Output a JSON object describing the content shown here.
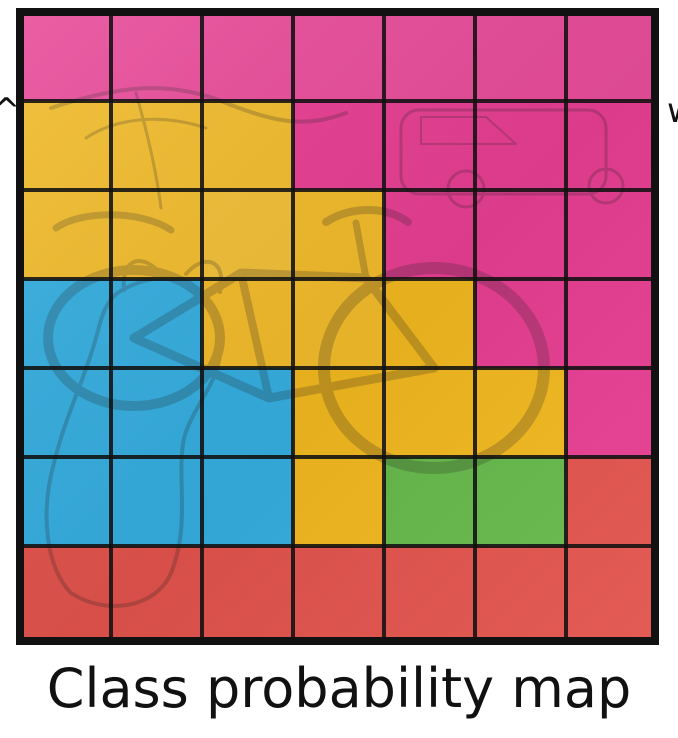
{
  "caption": "Class probability map",
  "edge_marks": {
    "left": "^",
    "right": "w"
  },
  "colors": {
    "pink": "#e83e93",
    "gold": "#f2b81f",
    "blue": "#35aee0",
    "green": "#66b94b",
    "red": "#e2534c",
    "black": "#111111",
    "white": "#ffffff"
  },
  "grid": {
    "rows": [
      [
        "pink",
        "pink",
        "pink",
        "pink",
        "pink",
        "pink",
        "pink"
      ],
      [
        "gold",
        "gold",
        "gold",
        "pink",
        "pink",
        "pink",
        "pink"
      ],
      [
        "gold",
        "gold",
        "gold",
        "gold",
        "pink",
        "pink",
        "pink"
      ],
      [
        "blue",
        "blue",
        "gold",
        "gold",
        "gold",
        "pink",
        "pink"
      ],
      [
        "blue",
        "blue",
        "blue",
        "gold",
        "gold",
        "gold",
        "pink"
      ],
      [
        "blue",
        "blue",
        "blue",
        "gold",
        "green",
        "green",
        "red"
      ],
      [
        "red",
        "red",
        "red",
        "red",
        "red",
        "red",
        "red"
      ]
    ]
  }
}
